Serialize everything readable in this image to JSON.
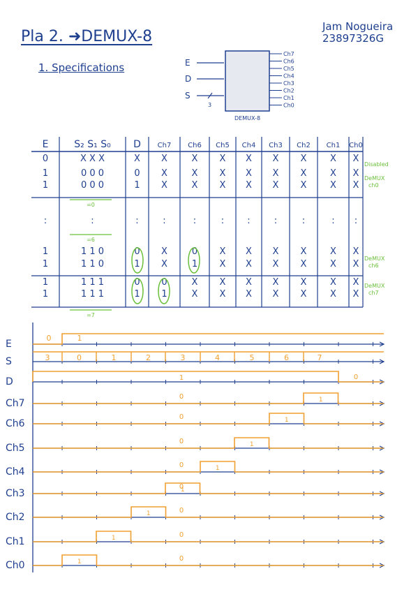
{
  "header": {
    "title": "Pla 2. ➜DEMUX-8",
    "section": "1. Specifications",
    "author_name": "Jam Nogueira",
    "author_id": "23897326G"
  },
  "block": {
    "inputs": [
      "E",
      "D",
      "S"
    ],
    "bus_width": "3",
    "outputs": [
      "Ch7",
      "Ch6",
      "Ch5",
      "Ch4",
      "Ch3",
      "Ch2",
      "Ch1",
      "Ch0"
    ],
    "label": "DEMUX-8"
  },
  "truth_table": {
    "headers": [
      "E",
      "S₂ S₁ S₀",
      "D",
      "Ch7",
      "Ch6",
      "Ch5",
      "Ch4",
      "Ch3",
      "Ch2",
      "Ch1",
      "Ch0"
    ],
    "rows": [
      [
        "0",
        "X X X",
        "X",
        "X",
        "X",
        "X",
        "X",
        "X",
        "X",
        "X",
        "X"
      ],
      [
        "1",
        "0 0 0",
        "0",
        "X",
        "X",
        "X",
        "X",
        "X",
        "X",
        "X",
        "X"
      ],
      [
        "1",
        "0 0 0",
        "1",
        "X",
        "X",
        "X",
        "X",
        "X",
        "X",
        "X",
        "X"
      ],
      [
        ":",
        ":",
        ":",
        ":",
        ":",
        ":",
        ":",
        ":",
        ":",
        ":",
        ":"
      ],
      [
        "1",
        "1 1 0",
        "0",
        "X",
        "0",
        "X",
        "X",
        "X",
        "X",
        "X",
        "X"
      ],
      [
        "1",
        "1 1 0",
        "1",
        "X",
        "1",
        "X",
        "X",
        "X",
        "X",
        "X",
        "X"
      ],
      [
        "1",
        "1 1 1",
        "0",
        "0",
        "X",
        "X",
        "X",
        "X",
        "X",
        "X",
        "X"
      ],
      [
        "1",
        "1 1 1",
        "1",
        "1",
        "X",
        "X",
        "X",
        "X",
        "X",
        "X",
        "X"
      ]
    ],
    "group_labels": [
      "=0",
      "=6",
      "=7"
    ],
    "annotations": [
      "Disabled",
      "DeMUX ch0",
      "DeMUX ch6",
      "DeMUX ch7"
    ]
  },
  "timing": {
    "signals": [
      "E",
      "S",
      "D",
      "Ch7",
      "Ch6",
      "Ch5",
      "Ch4",
      "Ch3",
      "Ch2",
      "Ch1",
      "Ch0"
    ],
    "E_values": [
      "0",
      "1"
    ],
    "S_values": [
      "3",
      "0",
      "1",
      "2",
      "3",
      "4",
      "5",
      "6",
      "7"
    ],
    "D_values": [
      "1",
      "0"
    ],
    "channel_pulse_label": "1",
    "channel_low_label": "0"
  },
  "colors": {
    "ink": "#1f3f8f",
    "signal": "#f0a030",
    "note": "#6abf3a",
    "block_fill": "#e6e9f0"
  }
}
